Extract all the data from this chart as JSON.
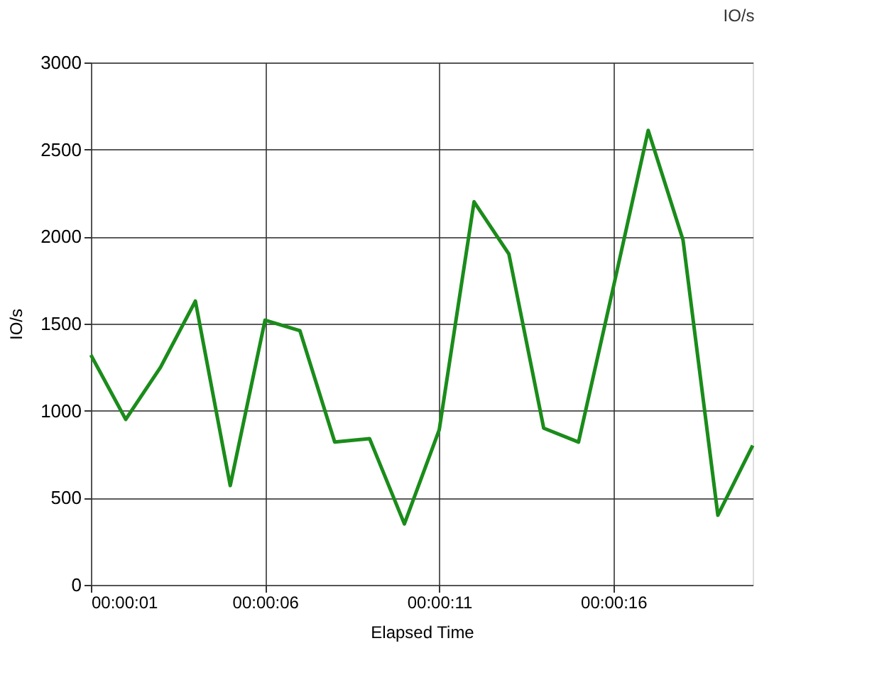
{
  "chart_data": {
    "type": "line",
    "title": "IO/s",
    "xlabel": "Elapsed Time",
    "ylabel": "IO/s",
    "x": [
      1,
      2,
      3,
      4,
      5,
      6,
      7,
      8,
      9,
      10,
      11,
      12,
      13,
      14,
      15,
      16,
      17,
      18,
      19,
      20
    ],
    "series": [
      {
        "color": "#1a8c1a",
        "values": [
          1320,
          950,
          1250,
          1630,
          570,
          1520,
          1460,
          820,
          840,
          350,
          890,
          2200,
          1900,
          900,
          820,
          1710,
          2610,
          1980,
          400,
          800
        ]
      }
    ],
    "xlim": [
      1,
      20
    ],
    "xticks": [
      {
        "value": 1,
        "label": "00:00:01"
      },
      {
        "value": 6,
        "label": "00:00:06"
      },
      {
        "value": 11,
        "label": "00:00:11"
      },
      {
        "value": 16,
        "label": "00:00:16"
      }
    ],
    "ylim": [
      0,
      3000
    ],
    "yticks": [
      0,
      500,
      1000,
      1500,
      2000,
      2500,
      3000
    ],
    "grid": true,
    "legend": false,
    "marker": "none",
    "line_style": "solid"
  }
}
